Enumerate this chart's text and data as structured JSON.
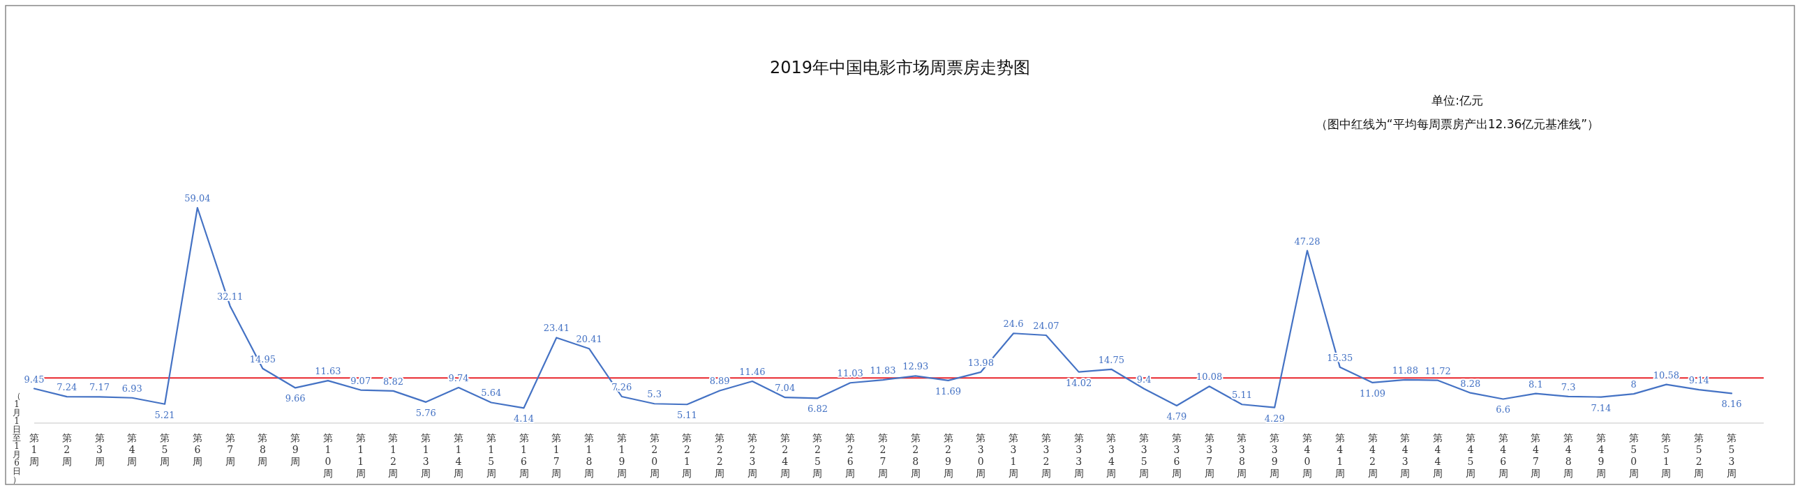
{
  "chart_data": {
    "type": "line",
    "title": "2019年中国电影市场周票房走势图",
    "annotations": [
      "单位:亿元",
      "（图中红线为“平均每周票房产出12.36亿元基准线”）",
      "（1月1日至1月6日）"
    ],
    "categories": [
      "第1周",
      "第2周",
      "第3周",
      "第4周",
      "第5周",
      "第6周",
      "第7周",
      "第8周",
      "第9周",
      "第10周",
      "第11周",
      "第12周",
      "第13周",
      "第14周",
      "第15周",
      "第16周",
      "第17周",
      "第18周",
      "第19周",
      "第20周",
      "第21周",
      "第22周",
      "第23周",
      "第24周",
      "第25周",
      "第26周",
      "第27周",
      "第28周",
      "第29周",
      "第30周",
      "第31周",
      "第32周",
      "第33周",
      "第34周",
      "第35周",
      "第36周",
      "第37周",
      "第38周",
      "第39周",
      "第40周",
      "第41周",
      "第42周",
      "第43周",
      "第44周",
      "第45周",
      "第46周",
      "第47周",
      "第48周",
      "第49周",
      "第50周",
      "第51周",
      "第52周",
      "第53周"
    ],
    "series": [
      {
        "color": "#4472c4",
        "values": [
          9.45,
          7.24,
          7.17,
          6.93,
          5.21,
          59.04,
          32.11,
          14.95,
          9.66,
          11.63,
          9.07,
          8.82,
          5.76,
          9.74,
          5.64,
          4.14,
          23.41,
          20.41,
          7.26,
          5.3,
          5.11,
          8.89,
          11.46,
          7.04,
          6.82,
          11.03,
          11.83,
          12.93,
          11.69,
          13.98,
          24.6,
          24.07,
          14.02,
          14.75,
          9.4,
          4.79,
          10.08,
          5.11,
          4.29,
          47.28,
          15.35,
          11.09,
          11.88,
          11.72,
          8.28,
          6.6,
          8.1,
          7.3,
          7.14,
          8,
          10.58,
          9.14,
          8.16
        ]
      }
    ],
    "ref_lines": [
      {
        "axis": "y",
        "value": 12.36,
        "color": "#e8242b"
      }
    ],
    "data_labels": true
  }
}
